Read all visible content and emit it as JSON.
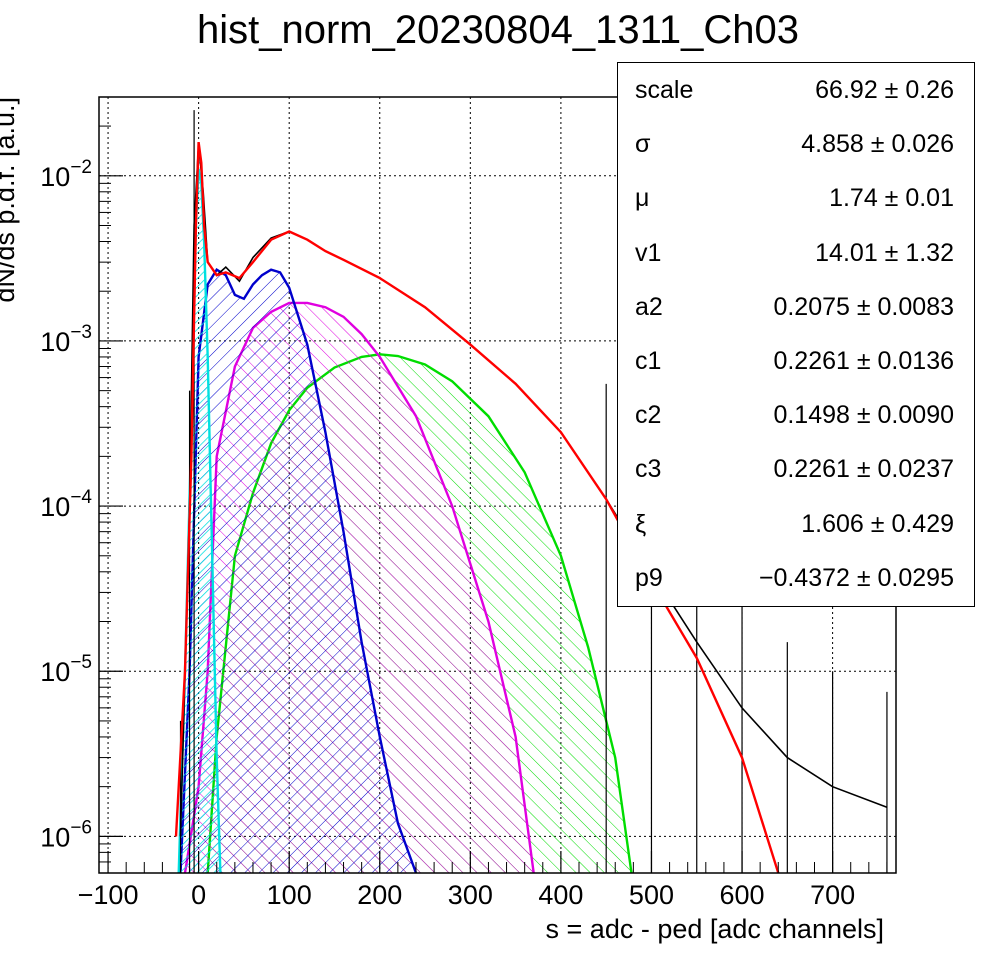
{
  "chart_data": {
    "type": "line",
    "title": "hist_norm_20230804_1311_Ch03",
    "xlabel": "s = adc - ped [adc channels]",
    "ylabel": "dN/ds p.d.f. [a.u.]",
    "xlim": [
      -110,
      770
    ],
    "ylim": [
      6e-07,
      0.03
    ],
    "yscale": "log",
    "grid": true,
    "x_ticks": [
      -100,
      0,
      100,
      200,
      300,
      400,
      500,
      600,
      700
    ],
    "x_tick_labels": [
      "−100",
      "0",
      "100",
      "200",
      "300",
      "400",
      "500",
      "600",
      "700"
    ],
    "y_ticks": [
      1e-06,
      1e-05,
      0.0001,
      0.001,
      0.01
    ],
    "y_tick_labels": [
      {
        "base": "10",
        "exp": "−6"
      },
      {
        "base": "10",
        "exp": "−5"
      },
      {
        "base": "10",
        "exp": "−4"
      },
      {
        "base": "10",
        "exp": "−3"
      },
      {
        "base": "10",
        "exp": "−2"
      }
    ],
    "series": [
      {
        "color": "#000000",
        "style": "histogram",
        "x": [
          -20,
          -10,
          -5,
          0,
          5,
          10,
          20,
          30,
          45,
          60,
          80,
          100,
          120,
          140,
          160,
          200,
          250,
          300,
          350,
          400,
          450,
          500,
          550,
          600,
          650,
          700,
          760
        ],
        "y": [
          1e-06,
          0.0001,
          0.005,
          0.0155,
          0.008,
          0.003,
          0.0025,
          0.0028,
          0.0023,
          0.0032,
          0.0042,
          0.0046,
          0.0041,
          0.0035,
          0.0031,
          0.0024,
          0.0016,
          0.00095,
          0.00055,
          0.00028,
          0.00011,
          4e-05,
          1.5e-05,
          6e-06,
          3e-06,
          2e-06,
          1.5e-06
        ]
      },
      {
        "color": "#ff0000",
        "style": "line",
        "x": [
          -25,
          -15,
          -8,
          -3,
          0,
          3,
          6,
          10,
          20,
          30,
          45,
          60,
          80,
          100,
          120,
          140,
          160,
          200,
          250,
          300,
          350,
          400,
          450,
          500,
          550,
          600,
          640
        ],
        "y": [
          1e-06,
          1e-05,
          0.0002,
          0.005,
          0.016,
          0.012,
          0.005,
          0.003,
          0.0025,
          0.0026,
          0.0024,
          0.003,
          0.0041,
          0.0046,
          0.0041,
          0.0035,
          0.0031,
          0.0024,
          0.0016,
          0.00095,
          0.00055,
          0.00028,
          0.00011,
          3.5e-05,
          1.2e-05,
          3e-06,
          6e-07
        ]
      },
      {
        "color": "#00e0e0",
        "style": "filled",
        "x": [
          -22,
          -15,
          -8,
          -3,
          0,
          3,
          6,
          10,
          15,
          20,
          24
        ],
        "y": [
          6e-07,
          1e-05,
          0.0003,
          0.005,
          0.011,
          0.009,
          0.004,
          0.0008,
          5e-05,
          3e-06,
          6e-07
        ]
      },
      {
        "color": "#0000cc",
        "style": "filled",
        "x": [
          -20,
          -10,
          0,
          10,
          20,
          30,
          40,
          50,
          60,
          70,
          80,
          90,
          100,
          120,
          140,
          160,
          180,
          200,
          220,
          240
        ],
        "y": [
          6e-07,
          1e-05,
          0.0008,
          0.0022,
          0.0027,
          0.0025,
          0.0019,
          0.0018,
          0.0022,
          0.0025,
          0.0027,
          0.0026,
          0.0021,
          0.00095,
          0.00028,
          7e-05,
          1.5e-05,
          4e-06,
          1.2e-06,
          6e-07
        ]
      },
      {
        "color": "#e000e0",
        "style": "filled",
        "x": [
          -15,
          0,
          10,
          20,
          40,
          60,
          80,
          100,
          120,
          140,
          160,
          180,
          200,
          240,
          280,
          320,
          350,
          370
        ],
        "y": [
          6e-07,
          2e-06,
          1e-05,
          0.0002,
          0.0007,
          0.0012,
          0.0015,
          0.0017,
          0.0017,
          0.0016,
          0.0014,
          0.0011,
          0.0008,
          0.00035,
          0.0001,
          2e-05,
          4e-06,
          6e-07
        ]
      },
      {
        "color": "#00dd00",
        "style": "filled",
        "x": [
          10,
          20,
          40,
          60,
          80,
          100,
          120,
          150,
          180,
          200,
          220,
          250,
          280,
          320,
          360,
          400,
          430,
          460,
          478
        ],
        "y": [
          6e-07,
          4e-06,
          5e-05,
          0.00012,
          0.00024,
          0.00038,
          0.00052,
          0.00069,
          0.0008,
          0.00083,
          0.00081,
          0.00072,
          0.00057,
          0.00035,
          0.00016,
          5e-05,
          1.4e-05,
          3e-06,
          6e-07
        ]
      }
    ]
  },
  "stats": [
    {
      "name": "scale",
      "value": "66.92 ± 0.26"
    },
    {
      "name": "σ",
      "value": "4.858 ± 0.026"
    },
    {
      "name": "μ",
      "value": "1.74 ± 0.01"
    },
    {
      "name": "v1",
      "value": "14.01 ± 1.32"
    },
    {
      "name": "a2",
      "value": "0.2075 ± 0.0083"
    },
    {
      "name": "c1",
      "value": "0.2261 ± 0.0136"
    },
    {
      "name": "c2",
      "value": "0.1498 ± 0.0090"
    },
    {
      "name": "c3",
      "value": "0.2261 ± 0.0237"
    },
    {
      "name": "ξ",
      "value": "1.606 ± 0.429"
    },
    {
      "name": "p9",
      "value": "−0.4372 ± 0.0295"
    }
  ]
}
